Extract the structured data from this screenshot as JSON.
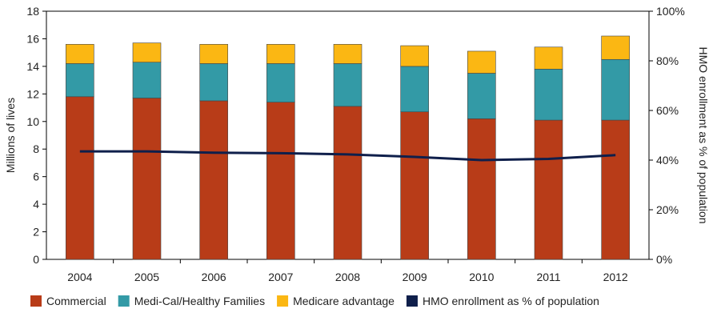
{
  "chart_data": {
    "type": "bar",
    "subtype": "stacked-bar-with-line",
    "categories": [
      "2004",
      "2005",
      "2006",
      "2007",
      "2008",
      "2009",
      "2010",
      "2011",
      "2012"
    ],
    "series": [
      {
        "name": "Commercial",
        "color": "#b83c18",
        "axis": "left",
        "values": [
          11.8,
          11.7,
          11.5,
          11.4,
          11.1,
          10.7,
          10.2,
          10.1,
          10.1
        ]
      },
      {
        "name": "Medi-Cal/Healthy Families",
        "color": "#339aa6",
        "axis": "left",
        "values": [
          2.4,
          2.6,
          2.7,
          2.8,
          3.1,
          3.3,
          3.3,
          3.7,
          4.4
        ]
      },
      {
        "name": "Medicare advantage",
        "color": "#fbb713",
        "axis": "left",
        "values": [
          1.4,
          1.4,
          1.4,
          1.4,
          1.4,
          1.5,
          1.6,
          1.6,
          1.7
        ]
      },
      {
        "name": "HMO enrollment as % of population",
        "color": "#0f1f4b",
        "axis": "right",
        "type": "line",
        "values": [
          43.5,
          43.5,
          43,
          42.8,
          42.3,
          41.3,
          40,
          40.5,
          42
        ]
      }
    ],
    "ylabel": "Millions of lives",
    "ylabel_right": "HMO enrollment as % of population",
    "ylim": [
      0,
      18
    ],
    "yticks": [
      "0",
      "2",
      "4",
      "6",
      "8",
      "10",
      "12",
      "14",
      "16",
      "18"
    ],
    "ylim_right": [
      0,
      100
    ],
    "yticks_right": [
      "0%",
      "20%",
      "40%",
      "60%",
      "80%",
      "100%"
    ],
    "grid": false,
    "legend": "bottom"
  }
}
